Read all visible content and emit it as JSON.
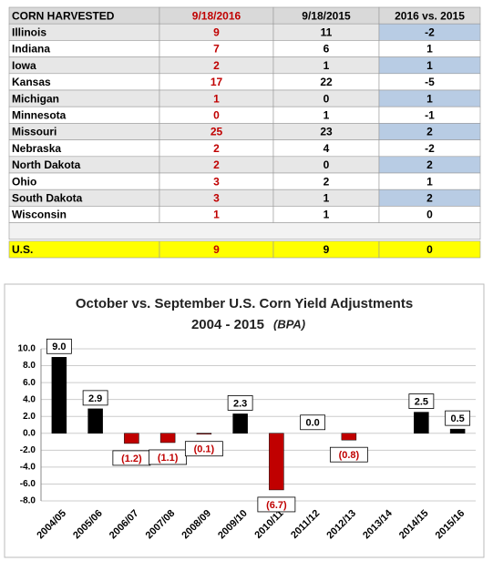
{
  "table": {
    "header": [
      "CORN HARVESTED",
      "9/18/2016",
      "9/18/2015",
      "2016 vs. 2015"
    ],
    "rows": [
      [
        "Illinois",
        9,
        11,
        -2
      ],
      [
        "Indiana",
        7,
        6,
        1
      ],
      [
        "Iowa",
        2,
        1,
        1
      ],
      [
        "Kansas",
        17,
        22,
        -5
      ],
      [
        "Michigan",
        1,
        0,
        1
      ],
      [
        "Minnesota",
        0,
        1,
        -1
      ],
      [
        "Missouri",
        25,
        23,
        2
      ],
      [
        "Nebraska",
        2,
        4,
        -2
      ],
      [
        "North Dakota",
        2,
        0,
        2
      ],
      [
        "Ohio",
        3,
        2,
        1
      ],
      [
        "South Dakota",
        3,
        1,
        2
      ],
      [
        "Wisconsin",
        1,
        1,
        0
      ]
    ],
    "total": [
      "U.S.",
      9,
      9,
      0
    ]
  },
  "chart_data": {
    "type": "bar",
    "title": "October vs. September U.S. Corn Yield Adjustments",
    "subtitle": "2004 - 2015",
    "unit": "(BPA)",
    "categories": [
      "2004/05",
      "2005/06",
      "2006/07",
      "2007/08",
      "2008/09",
      "2009/10",
      "2010/11",
      "2011/12",
      "2012/13",
      "2013/14",
      "2014/15",
      "2015/16"
    ],
    "values": [
      9.0,
      2.9,
      -1.2,
      -1.1,
      -0.1,
      2.3,
      -6.7,
      0.0,
      -0.8,
      null,
      2.5,
      0.5
    ],
    "value_labels": [
      "9.0",
      "2.9",
      "(1.2)",
      "(1.1)",
      "(0.1)",
      "2.3",
      "(6.7)",
      "0.0",
      "(0.8)",
      null,
      "2.5",
      "0.5"
    ],
    "positive_color": "#000000",
    "negative_color": "#c00000",
    "ylim": [
      -8,
      10
    ],
    "yticks": [
      {
        "value": 10,
        "label": "10.0"
      },
      {
        "value": 8,
        "label": "8.0"
      },
      {
        "value": 6,
        "label": "6.0"
      },
      {
        "value": 4,
        "label": "4.0"
      },
      {
        "value": 2,
        "label": "2.0"
      },
      {
        "value": 0,
        "label": "0.0"
      },
      {
        "value": -2,
        "label": "-2.0"
      },
      {
        "value": -4,
        "label": "-4.0"
      },
      {
        "value": -6,
        "label": "-6.0"
      },
      {
        "value": -8,
        "label": "-8.0"
      }
    ],
    "grid": true
  }
}
